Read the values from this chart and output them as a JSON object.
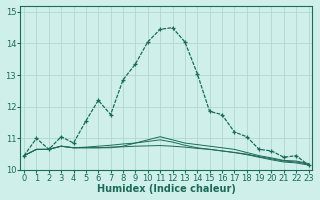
{
  "xlabel": "Humidex (Indice chaleur)",
  "background_color": "#cff0ea",
  "grid_color": "#b0d8d0",
  "line_color": "#1a6b5a",
  "x_values": [
    0,
    1,
    2,
    3,
    4,
    5,
    6,
    7,
    8,
    9,
    10,
    11,
    12,
    13,
    14,
    15,
    16,
    17,
    18,
    19,
    20,
    21,
    22,
    23
  ],
  "main_series": [
    10.45,
    11.0,
    10.65,
    11.05,
    10.85,
    11.55,
    12.2,
    11.75,
    12.85,
    13.35,
    14.05,
    14.45,
    14.5,
    14.05,
    13.05,
    11.85,
    11.75,
    11.2,
    11.05,
    10.65,
    10.6,
    10.4,
    10.45,
    10.15
  ],
  "flat_series": [
    [
      10.45,
      10.65,
      10.65,
      10.75,
      10.7,
      10.7,
      10.7,
      10.7,
      10.75,
      10.85,
      10.95,
      11.05,
      10.95,
      10.85,
      10.8,
      10.75,
      10.7,
      10.65,
      10.55,
      10.45,
      10.38,
      10.3,
      10.28,
      10.2
    ],
    [
      10.45,
      10.65,
      10.65,
      10.75,
      10.7,
      10.72,
      10.75,
      10.78,
      10.82,
      10.85,
      10.9,
      10.95,
      10.88,
      10.78,
      10.7,
      10.65,
      10.6,
      10.55,
      10.5,
      10.42,
      10.35,
      10.28,
      10.25,
      10.18
    ],
    [
      10.45,
      10.65,
      10.65,
      10.75,
      10.7,
      10.7,
      10.7,
      10.72,
      10.73,
      10.75,
      10.76,
      10.77,
      10.75,
      10.72,
      10.68,
      10.65,
      10.6,
      10.55,
      10.48,
      10.4,
      10.32,
      10.25,
      10.22,
      10.15
    ]
  ],
  "ylim": [
    10.0,
    15.2
  ],
  "yticks": [
    10,
    11,
    12,
    13,
    14,
    15
  ],
  "xticks": [
    0,
    1,
    2,
    3,
    4,
    5,
    6,
    7,
    8,
    9,
    10,
    11,
    12,
    13,
    14,
    15,
    16,
    17,
    18,
    19,
    20,
    21,
    22,
    23
  ],
  "label_fontsize": 7,
  "tick_fontsize": 6
}
